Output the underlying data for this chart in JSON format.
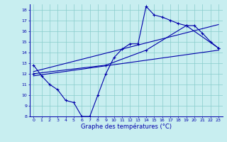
{
  "xlabel": "Graphe des températures (°C)",
  "bg_color": "#c8eef0",
  "line_color": "#0000aa",
  "grid_color": "#88cccc",
  "ylim": [
    8,
    18.5
  ],
  "xlim": [
    -0.5,
    23.5
  ],
  "yticks": [
    8,
    9,
    10,
    11,
    12,
    13,
    14,
    15,
    16,
    17,
    18
  ],
  "xticks": [
    0,
    1,
    2,
    3,
    4,
    5,
    6,
    7,
    8,
    9,
    10,
    11,
    12,
    13,
    14,
    15,
    16,
    17,
    18,
    19,
    20,
    21,
    22,
    23
  ],
  "curve1_x": [
    0,
    1,
    2,
    3,
    4,
    5,
    6,
    7,
    8,
    9,
    10,
    11,
    12,
    13,
    14,
    15,
    16,
    17,
    18,
    19,
    20,
    21,
    22,
    23
  ],
  "curve1_y": [
    12.8,
    11.8,
    11.0,
    10.5,
    9.5,
    9.3,
    8.0,
    8.0,
    10.0,
    12.0,
    13.5,
    14.3,
    14.8,
    14.8,
    18.3,
    17.5,
    17.3,
    17.0,
    16.7,
    16.5,
    16.5,
    15.8,
    15.0,
    14.4
  ],
  "curve2_x": [
    0,
    9,
    14,
    19,
    23
  ],
  "curve2_y": [
    12.0,
    12.8,
    14.2,
    16.5,
    14.4
  ],
  "curve3_x": [
    0,
    23
  ],
  "curve3_y": [
    11.8,
    14.2
  ],
  "curve4_x": [
    0,
    23
  ],
  "curve4_y": [
    12.2,
    16.6
  ]
}
